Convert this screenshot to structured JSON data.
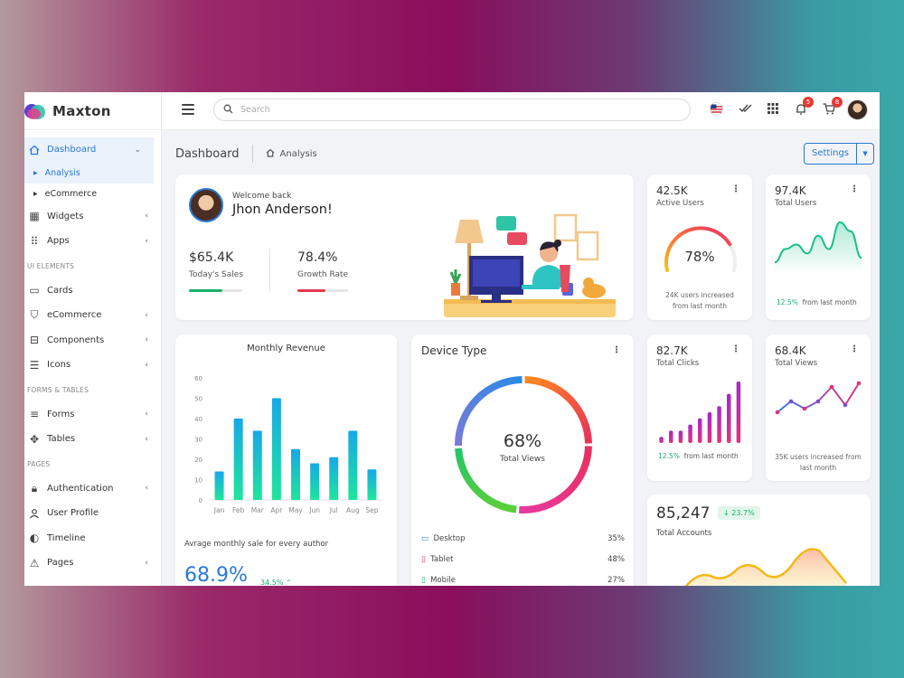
{
  "brand": {
    "name": "Maxton"
  },
  "sidebar": {
    "dashboard": "Dashboard",
    "sub": [
      "Analysis",
      "eCommerce"
    ],
    "items1": [
      "Widgets",
      "Apps"
    ],
    "section1": "UI ELEMENTS",
    "items2": [
      "Cards",
      "eCommerce",
      "Components",
      "Icons"
    ],
    "section2": "FORMS & TABLES",
    "items3": [
      "Forms",
      "Tables"
    ],
    "section3": "PAGES",
    "items4": [
      "Authentication",
      "User Profile",
      "Timeline",
      "Pages"
    ]
  },
  "topbar": {
    "search_placeholder": "Search",
    "notif_count": "5",
    "cart_count": "8"
  },
  "breadcrumb": {
    "title": "Dashboard",
    "crumb": "Analysis"
  },
  "settings": {
    "label": "Settings"
  },
  "welcome": {
    "greeting": "Welcome back",
    "name": "Jhon Anderson!",
    "sales_value": "$65.4K",
    "sales_label": "Today's Sales",
    "sales_progress": 0.62,
    "growth_value": "78.4%",
    "growth_label": "Growth Rate",
    "growth_progress": 0.55
  },
  "active_users": {
    "value": "42.5K",
    "label": "Active Users",
    "percent": "78%",
    "percent_num": 78,
    "note": "24K users increased from last month"
  },
  "total_users": {
    "value": "97.4K",
    "label": "Total Users",
    "change": "12.5%",
    "note": "from last month"
  },
  "monthly_revenue": {
    "title": "Monthly Revenue",
    "caption": "Avrage monthly sale for every author",
    "big": "68.9%",
    "big_change": "34.5%"
  },
  "device_type": {
    "title": "Device Type",
    "center_value": "68%",
    "center_label": "Total Views",
    "rows": [
      {
        "name": "Desktop",
        "value": "35%"
      },
      {
        "name": "Tablet",
        "value": "48%"
      },
      {
        "name": "Mobile",
        "value": "27%"
      }
    ]
  },
  "total_clicks": {
    "value": "82.7K",
    "label": "Total Clicks",
    "change": "12.5%",
    "note": "from last month"
  },
  "total_views": {
    "value": "68.4K",
    "label": "Total Views",
    "note": "35K users increased from last month"
  },
  "total_accounts": {
    "value": "85,247",
    "change": "23.7%",
    "label": "Total Accounts"
  },
  "chart_data": [
    {
      "type": "bar",
      "categories": [
        "Jan",
        "Feb",
        "Mar",
        "Apr",
        "May",
        "Jun",
        "Jul",
        "Aug",
        "Sep"
      ],
      "values": [
        14,
        40,
        34,
        50,
        25,
        18,
        21,
        34,
        15
      ],
      "title": "Monthly Revenue",
      "ylim": [
        0,
        60
      ],
      "yticks": [
        0,
        10,
        20,
        30,
        40,
        50,
        60
      ]
    },
    {
      "type": "bar",
      "values": [
        1,
        2,
        2,
        3,
        4,
        5,
        6,
        8,
        10
      ],
      "title": "Total Clicks"
    },
    {
      "type": "line",
      "values": [
        5,
        8,
        6,
        8,
        12,
        7,
        13
      ],
      "title": "Total Views"
    },
    {
      "type": "area",
      "values": [
        3,
        6,
        7,
        5,
        9,
        6,
        12,
        10,
        4
      ],
      "title": "Total Users"
    },
    {
      "type": "pie",
      "values": [
        35,
        48,
        27
      ],
      "labels": [
        "Desktop",
        "Tablet",
        "Mobile"
      ],
      "title": "Device Type"
    }
  ],
  "colors": {
    "accent": "#2a78d6",
    "green": "#18b06a",
    "badge": "#e53935"
  }
}
